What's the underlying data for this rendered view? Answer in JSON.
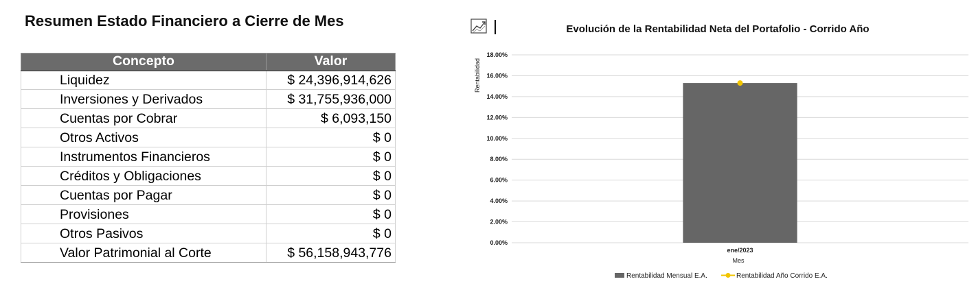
{
  "summary": {
    "title": "Resumen Estado Financiero a Cierre de Mes",
    "headers": [
      "Concepto",
      "Valor"
    ],
    "rows": [
      [
        "Liquidez",
        "$ 24,396,914,626"
      ],
      [
        "Inversiones y Derivados",
        "$ 31,755,936,000"
      ],
      [
        "Cuentas por Cobrar",
        "$ 6,093,150"
      ],
      [
        "Otros Activos",
        "$ 0"
      ],
      [
        "Instrumentos Financieros",
        "$ 0"
      ],
      [
        "Créditos y Obligaciones",
        "$ 0"
      ],
      [
        "Cuentas por Pagar",
        "$ 0"
      ],
      [
        "Provisiones",
        "$ 0"
      ],
      [
        "Otros Pasivos",
        "$ 0"
      ],
      [
        "Valor Patrimonial al Corte",
        "$ 56,158,943,776"
      ]
    ]
  },
  "chart_icon": "trend-chart-icon",
  "colors": {
    "bar": "#666666",
    "line": "#f2c500",
    "header_bg": "#6b6b6b"
  },
  "chart_data": {
    "type": "bar",
    "title": "Evolución de la Rentabilidad Neta del Portafolio - Corrido Año",
    "xlabel": "Mes",
    "ylabel": "Rentabilidad",
    "categories": [
      "ene/2023"
    ],
    "y_ticks": [
      "0.00%",
      "2.00%",
      "4.00%",
      "6.00%",
      "8.00%",
      "10.00%",
      "12.00%",
      "14.00%",
      "16.00%",
      "18.00%"
    ],
    "ylim": [
      0,
      18
    ],
    "grid": true,
    "legend_position": "bottom",
    "series": [
      {
        "name": "Rentabilidad Mensual E.A.",
        "type": "bar",
        "values": [
          15.3
        ]
      },
      {
        "name": "Rentabilidad Año Corrido E.A.",
        "type": "line",
        "values": [
          15.3
        ]
      }
    ]
  }
}
